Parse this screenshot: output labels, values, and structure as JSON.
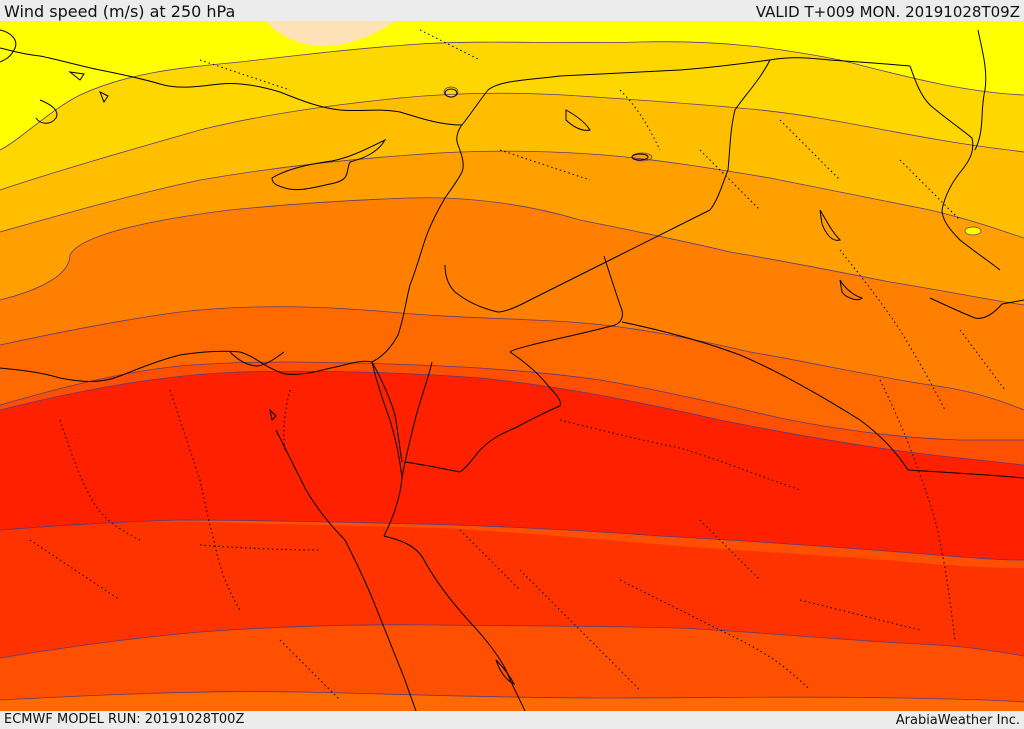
{
  "header": {
    "title": "Wind speed (m/s) at 250 hPa",
    "valid_time": "VALID T+009 MON. 20191028T09Z"
  },
  "footer": {
    "model_run": "ECMWF MODEL RUN: 20191028T00Z",
    "credit": "ArabiaWeather Inc."
  },
  "map": {
    "field": "wind speed at 250 hPa",
    "palette": [
      "#fde2b8",
      "#ffff00",
      "#ffd700",
      "#ffbf00",
      "#ff9f00",
      "#ff8000",
      "#ff6a00",
      "#ff4f00",
      "#ff3300",
      "#ff2000"
    ],
    "contour_color": "#5a3a7a",
    "coast_color": "#000000",
    "border_style": "dotted"
  }
}
